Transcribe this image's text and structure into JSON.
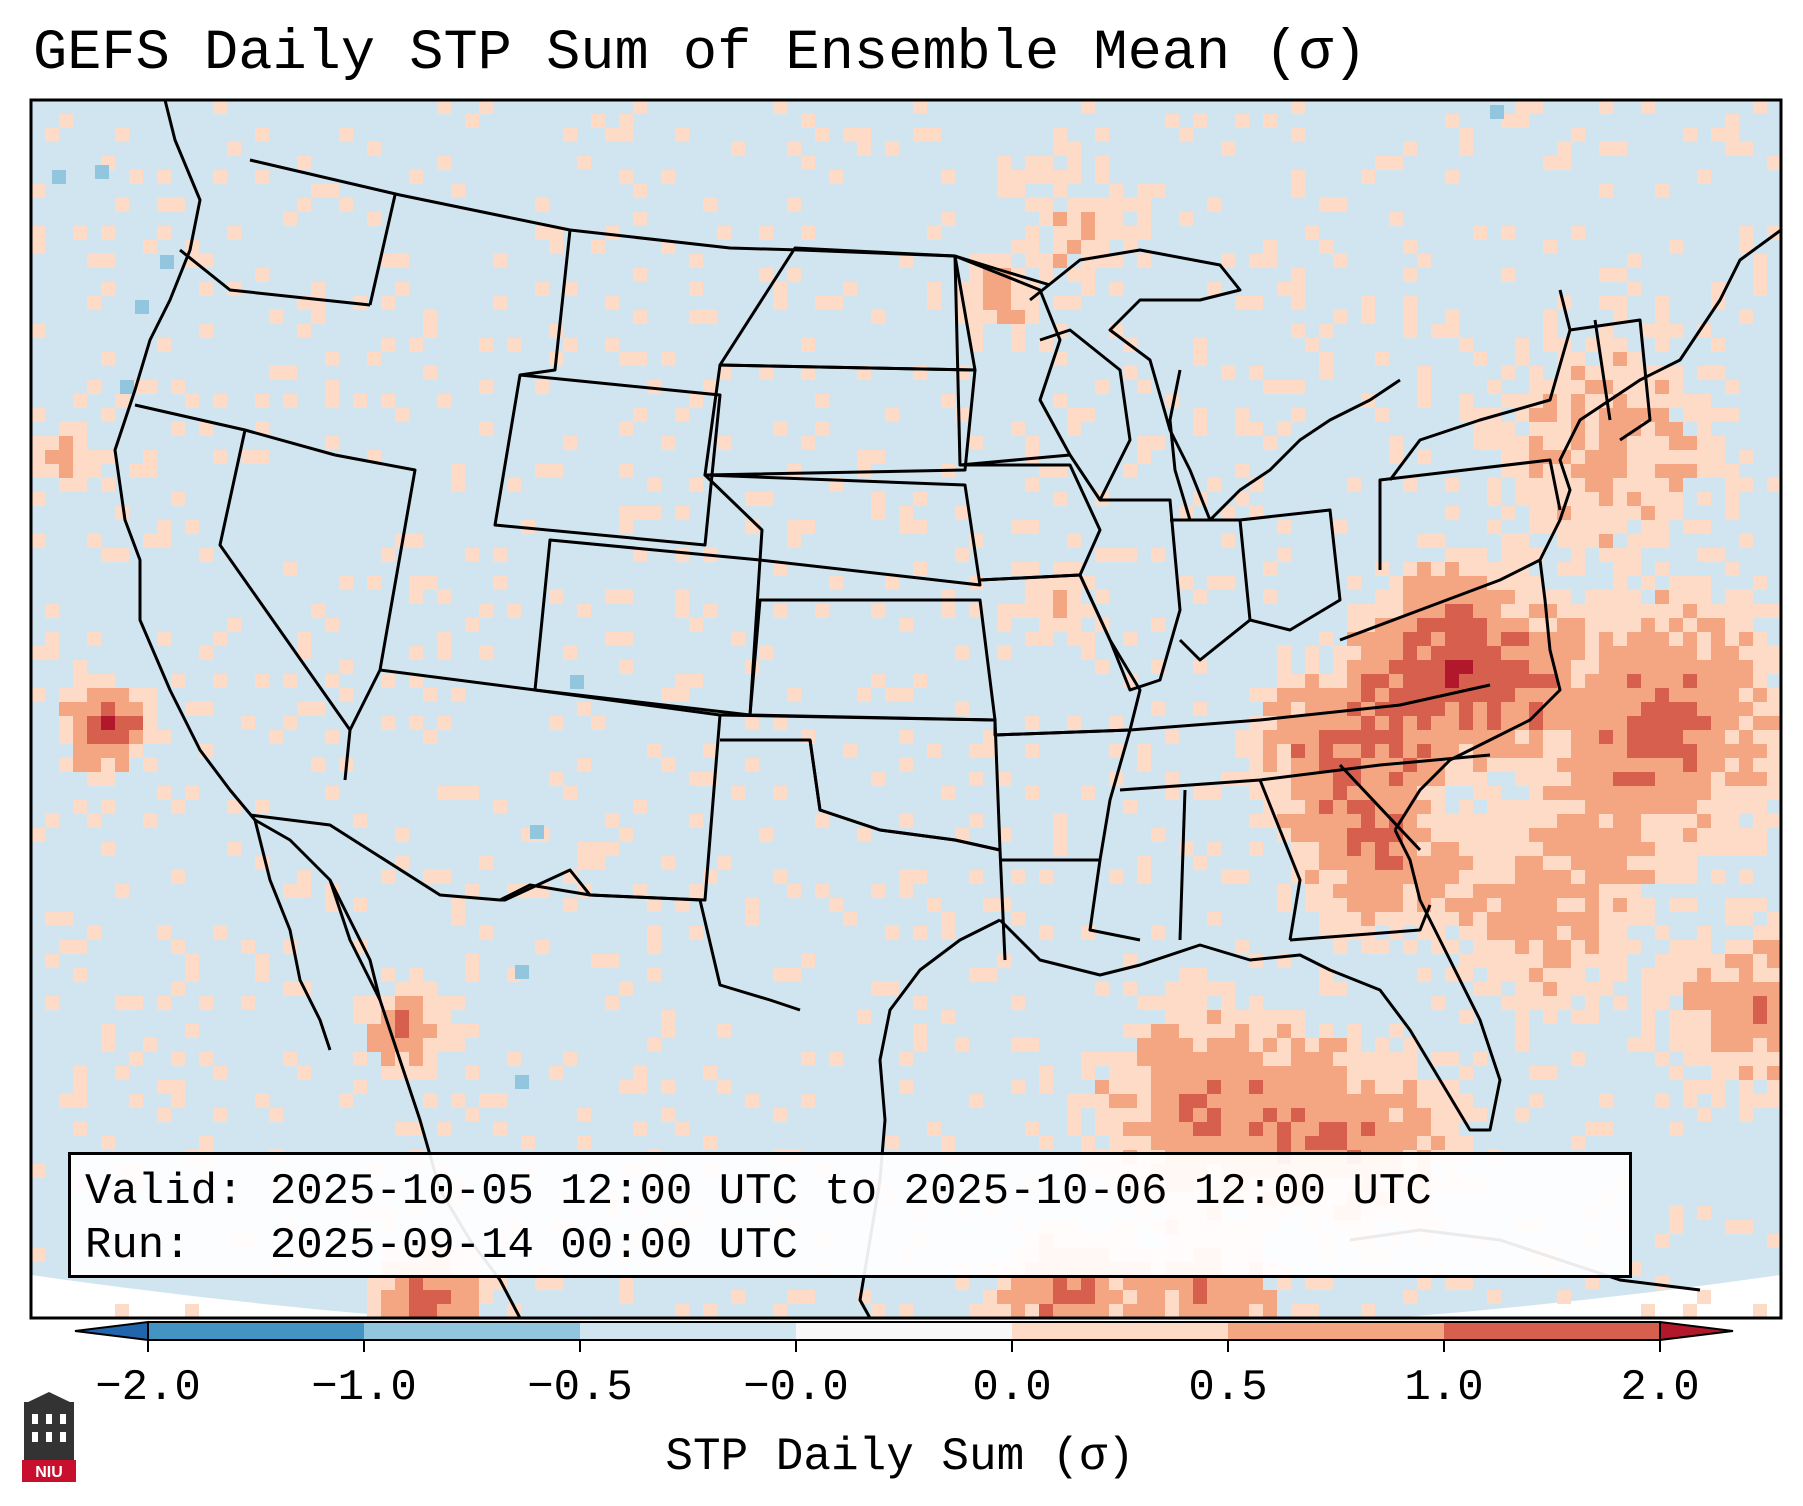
{
  "title": "GEFS Daily STP Sum of Ensemble Mean (σ)",
  "info": {
    "valid_label": "Valid:",
    "valid_value": "2025-10-05 12:00 UTC to 2025-10-06 12:00 UTC",
    "run_label": "Run:",
    "run_value": "2025-09-14 00:00 UTC"
  },
  "colorbar": {
    "label": "STP Daily Sum (σ)",
    "ticks": [
      "−2.0",
      "−1.0",
      "−0.5",
      "−0.0",
      "0.0",
      "0.5",
      "1.0",
      "2.0"
    ],
    "colors": [
      "#4393c3",
      "#92c5de",
      "#d1e5f0",
      "#f7f7f7",
      "#fddbc7",
      "#f4a582",
      "#d6604d"
    ],
    "extend_low_color": "#2166ac",
    "extend_high_color": "#b2182b"
  },
  "map": {
    "background_color": "#d1e5f0",
    "outline_color": "#000000",
    "off_domain_color": "#ffffff"
  },
  "logo": {
    "text": "NIU",
    "color": "#c8102e"
  }
}
